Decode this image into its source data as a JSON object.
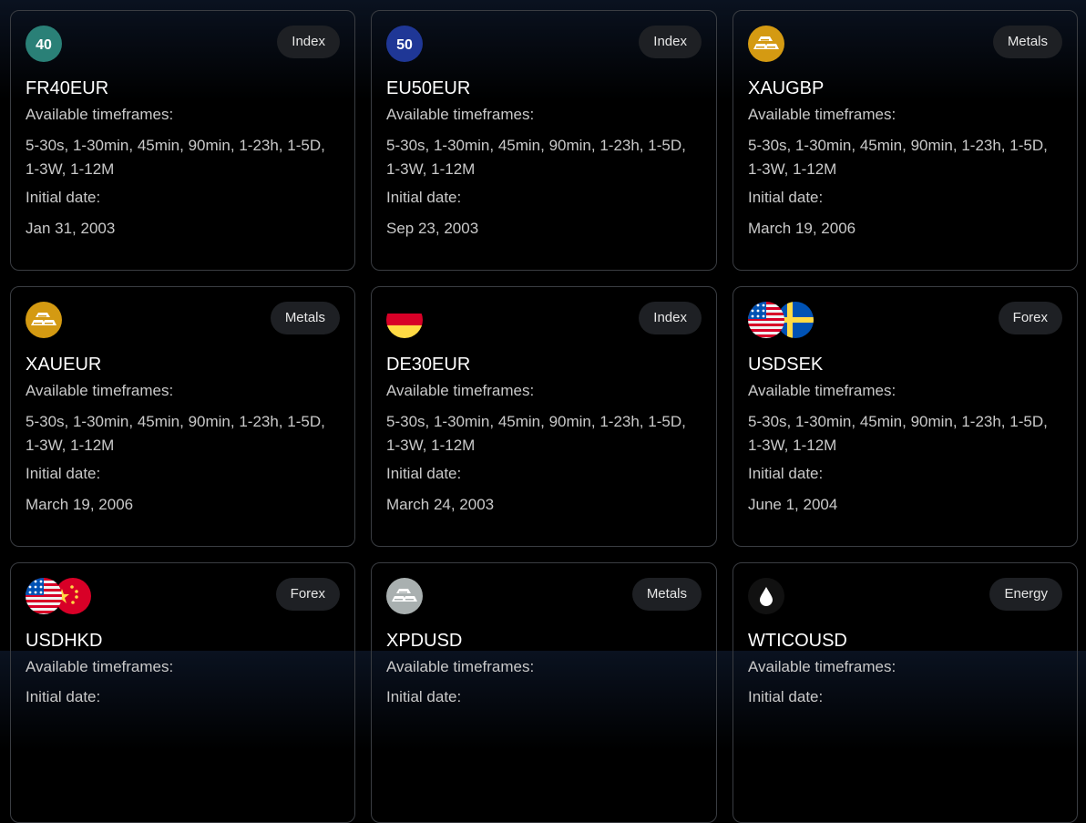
{
  "labels": {
    "timeframes": "Available timeframes:",
    "initial_date": "Initial date:"
  },
  "cards": [
    {
      "symbol": "FR40EUR",
      "category": "Index",
      "icon": "index-badge-icon",
      "icon_text": "40",
      "icon_color": "#2a8077",
      "timeframes": "5-30s, 1-30min, 45min, 90min, 1-23h, 1-5D, 1-3W, 1-12M",
      "initial_date": "Jan 31, 2003"
    },
    {
      "symbol": "EU50EUR",
      "category": "Index",
      "icon": "index-badge-icon",
      "icon_text": "50",
      "icon_color": "#1f3796",
      "timeframes": "5-30s, 1-30min, 45min, 90min, 1-23h, 1-5D, 1-3W, 1-12M",
      "initial_date": "Sep 23, 2003"
    },
    {
      "symbol": "XAUGBP",
      "category": "Metals",
      "icon": "gold-bars-icon",
      "icon_color": "#d49a12",
      "timeframes": "5-30s, 1-30min, 45min, 90min, 1-23h, 1-5D, 1-3W, 1-12M",
      "initial_date": "March 19, 2006"
    },
    {
      "symbol": "XAUEUR",
      "category": "Metals",
      "icon": "gold-bars-icon",
      "icon_color": "#d49a12",
      "timeframes": "5-30s, 1-30min, 45min, 90min, 1-23h, 1-5D, 1-3W, 1-12M",
      "initial_date": "March 19, 2006"
    },
    {
      "symbol": "DE30EUR",
      "category": "Index",
      "icon": "germany-flag-icon",
      "timeframes": "5-30s, 1-30min, 45min, 90min, 1-23h, 1-5D, 1-3W, 1-12M",
      "initial_date": "March 24, 2003"
    },
    {
      "symbol": "USDSEK",
      "category": "Forex",
      "icon": "us-sweden-flags-icon",
      "timeframes": "5-30s, 1-30min, 45min, 90min, 1-23h, 1-5D, 1-3W, 1-12M",
      "initial_date": "June 1, 2004"
    },
    {
      "symbol": "USDHKD",
      "category": "Forex",
      "icon": "us-china-flags-icon",
      "timeframes": "",
      "initial_date": ""
    },
    {
      "symbol": "XPDUSD",
      "category": "Metals",
      "icon": "silver-bars-icon",
      "icon_color": "#a9b0b0",
      "timeframes": "",
      "initial_date": ""
    },
    {
      "symbol": "WTICOUSD",
      "category": "Energy",
      "icon": "oil-drop-icon",
      "icon_color": "#111111",
      "timeframes": "",
      "initial_date": ""
    }
  ]
}
